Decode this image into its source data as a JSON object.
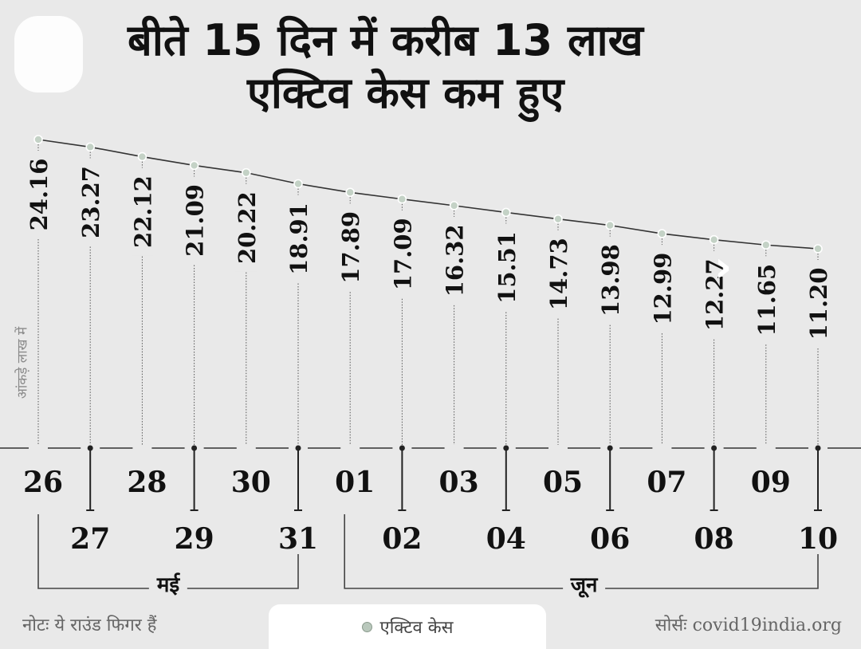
{
  "title": {
    "line1": "बीते 15 दिन में करीब 13 लाख",
    "line2": "एक्टिव केस कम हुए"
  },
  "y_axis_title": "आंकड़े लाख में",
  "months": {
    "may": "मई",
    "june": "जून"
  },
  "note": "नोटः ये राउंड फिगर हैं",
  "legend": {
    "label": "एक्टिव केस",
    "marker_color": "#b9c8bc"
  },
  "source": {
    "label": "सोर्सः",
    "value": "covid19india.org"
  },
  "colors": {
    "background": "#e9e9e9",
    "line": "#333333",
    "text": "#111111",
    "muted": "#8a8a8a"
  },
  "chart_data": {
    "type": "line",
    "categories": [
      "26",
      "27",
      "28",
      "29",
      "30",
      "31",
      "01",
      "02",
      "03",
      "04",
      "05",
      "06",
      "07",
      "08",
      "09",
      "10"
    ],
    "series": [
      {
        "name": "एक्टिव केस",
        "values": [
          24.16,
          23.27,
          22.12,
          21.09,
          20.22,
          18.91,
          17.89,
          17.09,
          16.32,
          15.51,
          14.73,
          13.98,
          12.99,
          12.27,
          11.65,
          11.2
        ]
      }
    ],
    "value_labels": [
      "24.16",
      "23.27",
      "22.12",
      "21.09",
      "20.22",
      "18.91",
      "17.89",
      "17.09",
      "16.32",
      "15.51",
      "14.73",
      "13.98",
      "12.99",
      "12.27",
      "11.65",
      "11.20"
    ],
    "month_groups": [
      {
        "label": "मई",
        "first_index": 0,
        "last_index": 5
      },
      {
        "label": "जून",
        "first_index": 6,
        "last_index": 15
      }
    ],
    "title": "बीते 15 दिन में करीब 13 लाख एक्टिव केस कम हुए",
    "ylabel": "आंकड़े लाख में",
    "grid": false,
    "legend_position": "bottom-center"
  }
}
